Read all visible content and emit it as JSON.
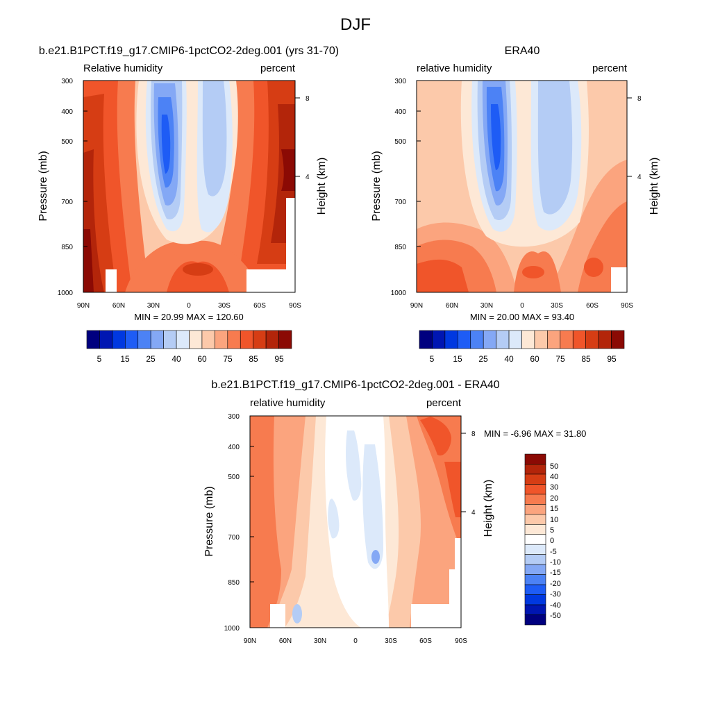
{
  "figure_title": "DJF",
  "chart_data": [
    {
      "type": "heatmap",
      "title": "b.e21.B1PCT.f19_g17.CMIP6-1pctCO2-2deg.001 (yrs 31-70)",
      "left_label": "Relative humidity",
      "right_label": "percent",
      "ylabel": "Pressure (mb)",
      "ylabel_right": "Height (km)",
      "x_ticks": [
        "90N",
        "60N",
        "30N",
        "0",
        "30S",
        "60S",
        "90S"
      ],
      "y_ticks": [
        "300",
        "400",
        "500",
        "700",
        "850",
        "1000"
      ],
      "y_ticks_right": [
        "8",
        "4"
      ],
      "xlim": [
        "90N",
        "90S"
      ],
      "ylim": [
        1000,
        300
      ],
      "stats": "MIN =  20.99  MAX = 120.60",
      "colorbar_labels": [
        "5",
        "15",
        "25",
        "40",
        "60",
        "75",
        "85",
        "95"
      ]
    },
    {
      "type": "heatmap",
      "title": "ERA40",
      "left_label": "relative humidity",
      "right_label": "percent",
      "ylabel": "Pressure (mb)",
      "ylabel_right": "Height (km)",
      "x_ticks": [
        "90N",
        "60N",
        "30N",
        "0",
        "30S",
        "60S",
        "90S"
      ],
      "y_ticks": [
        "300",
        "400",
        "500",
        "700",
        "850",
        "1000"
      ],
      "y_ticks_right": [
        "8",
        "4"
      ],
      "xlim": [
        "90N",
        "90S"
      ],
      "ylim": [
        1000,
        300
      ],
      "stats": "MIN =  20.00  MAX =  93.40",
      "colorbar_labels": [
        "5",
        "15",
        "25",
        "40",
        "60",
        "75",
        "85",
        "95"
      ]
    },
    {
      "type": "heatmap",
      "title": "b.e21.B1PCT.f19_g17.CMIP6-1pctCO2-2deg.001 - ERA40",
      "left_label": "relative humidity",
      "right_label": "percent",
      "ylabel": "Pressure (mb)",
      "ylabel_right": "Height (km)",
      "x_ticks": [
        "90N",
        "60N",
        "30N",
        "0",
        "30S",
        "60S",
        "90S"
      ],
      "y_ticks": [
        "300",
        "400",
        "500",
        "700",
        "850",
        "1000"
      ],
      "y_ticks_right": [
        "8",
        "4"
      ],
      "xlim": [
        "90N",
        "90S"
      ],
      "ylim": [
        1000,
        300
      ],
      "stats": "MIN =  -6.96  MAX =  31.80",
      "colorbar_labels": [
        "50",
        "40",
        "30",
        "20",
        "15",
        "10",
        "5",
        "0",
        "-5",
        "-10",
        "-15",
        "-20",
        "-30",
        "-40",
        "-50"
      ]
    }
  ],
  "abs_colors": [
    "#00007f",
    "#0016b2",
    "#0038e0",
    "#1e5cf5",
    "#4c82f5",
    "#84a8f5",
    "#b4ccf5",
    "#dce9fa",
    "#fde8d6",
    "#fcc9aa",
    "#fba47e",
    "#f77b4f",
    "#f0552a",
    "#d63d14",
    "#b3250a",
    "#8b0a04"
  ],
  "diff_colors": [
    "#8b0a04",
    "#b3250a",
    "#d63d14",
    "#f0552a",
    "#f77b4f",
    "#fba47e",
    "#fcc9aa",
    "#fde8d6",
    "#ffffff",
    "#dce9fa",
    "#b4ccf5",
    "#84a8f5",
    "#4c82f5",
    "#1e5cf5",
    "#0038e0",
    "#0016b2",
    "#00007f"
  ]
}
